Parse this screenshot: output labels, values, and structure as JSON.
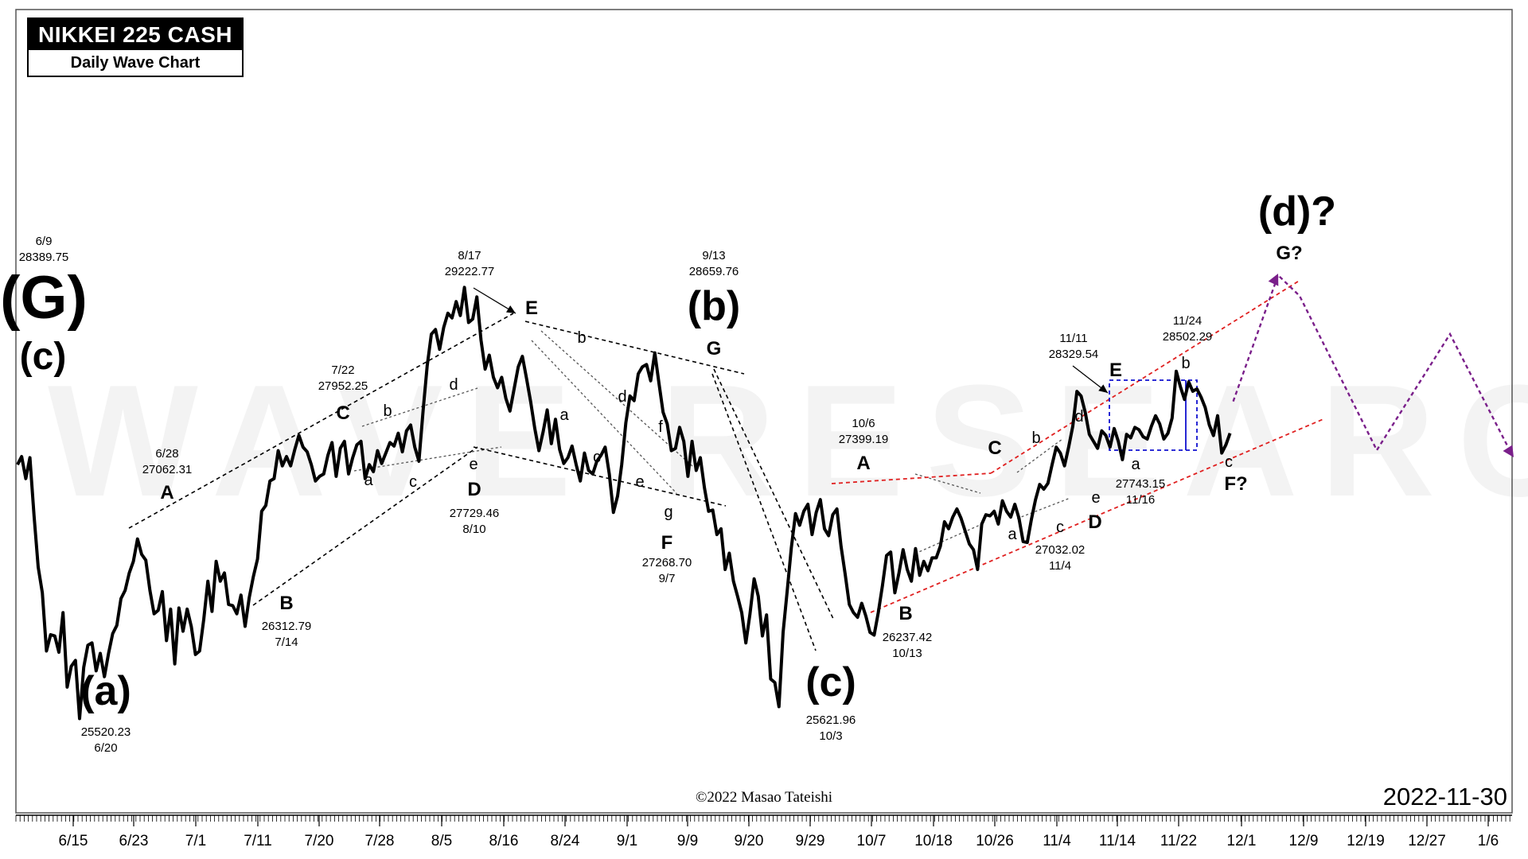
{
  "title": {
    "main": "NIKKEI 225 CASH",
    "sub": "Daily Wave Chart"
  },
  "watermark": "WAVE RESEARCH",
  "copyright": "©2022 Masao Tateishi",
  "date_stamp": "2022-11-30",
  "colors": {
    "price_line": "#000000",
    "trend_lines": "#000000",
    "channel_red": "#e02020",
    "box_blue": "#1010d0",
    "projection_purple": "#7a1f8a"
  },
  "chart_data": {
    "type": "line",
    "title": "NIKKEI 225 CASH",
    "subtitle": "Daily Wave Chart",
    "xlabel": "",
    "ylabel": "",
    "ylim": [
      25100,
      29900
    ],
    "x_axis_ticks": [
      "6/15",
      "6/23",
      "7/1",
      "7/11",
      "7/20",
      "7/28",
      "8/5",
      "8/16",
      "8/24",
      "9/1",
      "9/9",
      "9/20",
      "9/29",
      "10/7",
      "10/18",
      "10/26",
      "11/4",
      "11/14",
      "11/22",
      "12/1",
      "12/9",
      "12/19",
      "12/27",
      "1/6"
    ],
    "series": [
      {
        "values": [
          27700,
          27770,
          27580,
          27760,
          27260,
          26820,
          26600,
          26100,
          26240,
          26230,
          26090,
          26430,
          25790,
          25970,
          26020,
          25520,
          25960,
          26150,
          26170,
          25930,
          26080,
          25880,
          26080,
          26250,
          26320,
          26550,
          26620,
          26770,
          26870,
          27062,
          26930,
          26880,
          26620,
          26420,
          26450,
          26610,
          26190,
          26460,
          25990,
          26470,
          26270,
          26460,
          26310,
          26070,
          26100,
          26370,
          26700,
          26440,
          26870,
          26700,
          26770,
          26500,
          26490,
          26420,
          26580,
          26312,
          26560,
          26740,
          26890,
          27300,
          27350,
          27560,
          27580,
          27820,
          27690,
          27770,
          27690,
          27830,
          27952,
          27850,
          27810,
          27700,
          27560,
          27600,
          27620,
          27780,
          27890,
          27600,
          27840,
          27900,
          27620,
          27760,
          27870,
          27900,
          27580,
          27700,
          27640,
          27820,
          27710,
          27800,
          27890,
          27860,
          27970,
          27810,
          27990,
          28040,
          27850,
          27729,
          28160,
          28550,
          28820,
          28860,
          28690,
          28880,
          29000,
          28960,
          29100,
          28980,
          29222,
          28920,
          28950,
          29140,
          28770,
          28520,
          28640,
          28450,
          28360,
          28450,
          28270,
          28160,
          28350,
          28540,
          28630,
          28440,
          28240,
          28010,
          27820,
          27980,
          28170,
          27880,
          28090,
          27830,
          27710,
          27760,
          27860,
          27700,
          27560,
          27800,
          27650,
          27620,
          27730,
          27780,
          27850,
          27620,
          27290,
          27430,
          27700,
          28060,
          28290,
          28250,
          28480,
          28540,
          28560,
          28420,
          28660,
          28400,
          28150,
          28050,
          27820,
          27840,
          28020,
          27900,
          27600,
          27900,
          27650,
          27760,
          27500,
          27300,
          27310,
          27100,
          27150,
          26800,
          26940,
          26700,
          26570,
          26430,
          26170,
          26420,
          26720,
          26570,
          26230,
          26410,
          25860,
          25830,
          25622,
          26260,
          26620,
          26990,
          27280,
          27180,
          27300,
          27360,
          27100,
          27290,
          27400,
          27150,
          27090,
          27270,
          27320,
          27000,
          26760,
          26500,
          26430,
          26390,
          26510,
          26400,
          26260,
          26237,
          26430,
          26660,
          26920,
          26950,
          26600,
          26770,
          26970,
          26800,
          26700,
          26980,
          26750,
          26870,
          26790,
          26900,
          26900,
          27000,
          27210,
          27150,
          27250,
          27320,
          27240,
          27130,
          27020,
          26970,
          26800,
          27190,
          27270,
          27260,
          27300,
          27190,
          27390,
          27300,
          27250,
          27360,
          27240,
          27040,
          27032,
          27230,
          27400,
          27530,
          27490,
          27540,
          27700,
          27850,
          27800,
          27690,
          27850,
          28030,
          28329,
          28290,
          28150,
          27960,
          27900,
          27840,
          27990,
          27950,
          27850,
          28010,
          27900,
          27743,
          27960,
          27930,
          28020,
          28000,
          27940,
          27920,
          28030,
          28120,
          28050,
          27920,
          27970,
          28100,
          28502,
          28370,
          28260,
          28410,
          28330,
          28350,
          28280,
          28190,
          28040,
          27950,
          28120,
          27800,
          27870,
          27970
        ]
      }
    ],
    "annotations": [
      {
        "label": "(G)",
        "text": [
          "6/9",
          "28389.75"
        ]
      },
      {
        "label": "(c)"
      },
      {
        "label": "(a)",
        "text": [
          "25520.23",
          "6/20"
        ]
      },
      {
        "label": "A",
        "text": [
          "6/28",
          "27062.31"
        ]
      },
      {
        "label": "B",
        "text": [
          "26312.79",
          "7/14"
        ]
      },
      {
        "label": "C",
        "text": [
          "7/22",
          "27952.25"
        ]
      },
      {
        "label": "D",
        "text": [
          "27729.46",
          "8/10"
        ]
      },
      {
        "label": "E",
        "text": [
          "8/17",
          "29222.77"
        ]
      },
      {
        "label": "F",
        "text": [
          "27268.70",
          "9/7"
        ]
      },
      {
        "label": "G"
      },
      {
        "label": "(b)",
        "text": [
          "9/13",
          "28659.76"
        ]
      },
      {
        "label": "(c)",
        "text": [
          "25621.96",
          "10/3"
        ]
      },
      {
        "label": "A",
        "text": [
          "10/6",
          "27399.19"
        ]
      },
      {
        "label": "B",
        "text": [
          "26237.42",
          "10/13"
        ]
      },
      {
        "label": "C"
      },
      {
        "label": "D",
        "text": [
          "27032.02",
          "11/4"
        ]
      },
      {
        "label": "E",
        "text": [
          "11/11",
          "28329.54"
        ]
      },
      {
        "label": "a",
        "text": [
          "27743.15",
          "11/16"
        ]
      },
      {
        "label": "b",
        "text": [
          "11/24",
          "28502.29"
        ]
      },
      {
        "label": "c"
      },
      {
        "label": "F?"
      },
      {
        "label": "G?"
      },
      {
        "label": "(d)?"
      }
    ],
    "small_wave_labels": [
      "a",
      "b",
      "c",
      "d",
      "e",
      "a",
      "b",
      "c",
      "d",
      "e",
      "f",
      "g",
      "a",
      "b",
      "c",
      "d",
      "e"
    ],
    "projection": "dashed zigzag path up to G? then down into 2023",
    "grid": false,
    "legend": "none"
  }
}
